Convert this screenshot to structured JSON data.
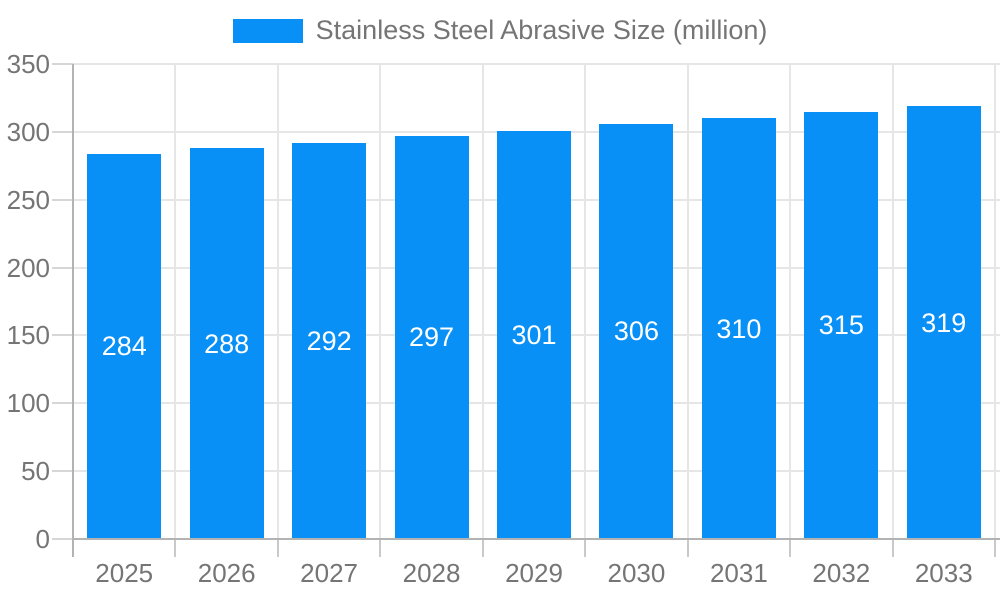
{
  "legend": {
    "label": "Stainless Steel Abrasive Size (million)"
  },
  "chart_data": {
    "type": "bar",
    "title": "Stainless Steel Abrasive Size (million)",
    "series_name": "Stainless Steel Abrasive Size (million)",
    "categories": [
      "2025",
      "2026",
      "2027",
      "2028",
      "2029",
      "2030",
      "2031",
      "2032",
      "2033"
    ],
    "values": [
      284,
      288,
      292,
      297,
      301,
      306,
      310,
      315,
      319
    ],
    "xlabel": "",
    "ylabel": "",
    "ylim": [
      0,
      350
    ],
    "yticks": [
      0,
      50,
      100,
      150,
      200,
      250,
      300,
      350
    ],
    "grid": true,
    "legend_position": "top-center",
    "bar_color": "#0990f6",
    "bar_value_label_color": "#ffffff",
    "axis_text_color": "#757575",
    "gridline_color": "#e6e6e6",
    "axis_line_color": "#b3b3b3"
  }
}
